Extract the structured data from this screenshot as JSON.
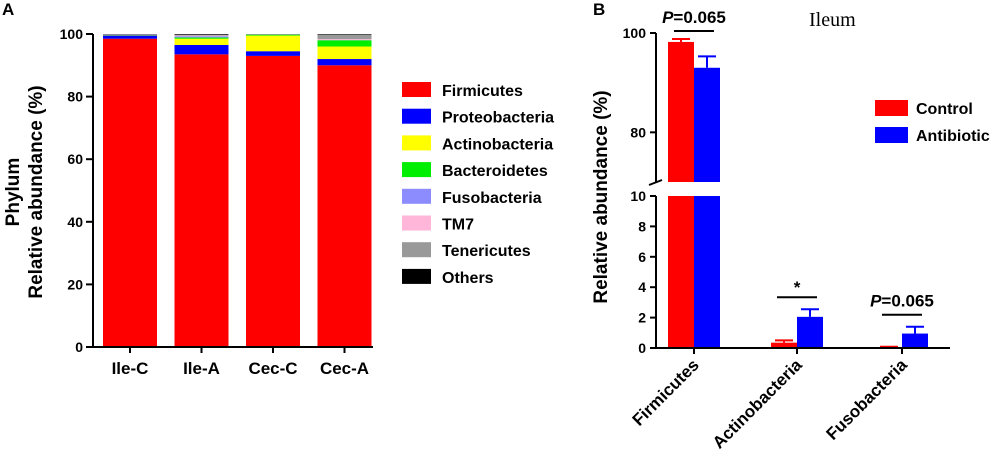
{
  "panel_labels": [
    "A",
    "B"
  ],
  "chart_data": [
    {
      "type": "bar",
      "stacked": true,
      "panel": "A",
      "title": "",
      "xlabel": "",
      "ylabel_line1": "Phylum",
      "ylabel_line2": "Relative abundance (%)",
      "ylim": [
        0,
        100
      ],
      "yticks": [
        0,
        20,
        40,
        60,
        80,
        100
      ],
      "categories": [
        "Ile-C",
        "Ile-A",
        "Cec-C",
        "Cec-A"
      ],
      "legend_position": "right",
      "series": [
        {
          "name": "Firmicutes",
          "color": "#ff0000",
          "values": [
            98.5,
            93.5,
            93.0,
            90.0
          ]
        },
        {
          "name": "Proteobacteria",
          "color": "#0000ff",
          "values": [
            1.0,
            3.0,
            1.5,
            2.0
          ]
        },
        {
          "name": "Actinobacteria",
          "color": "#ffff00",
          "values": [
            0.1,
            2.0,
            5.0,
            4.0
          ]
        },
        {
          "name": "Bacteroidetes",
          "color": "#00ee00",
          "values": [
            0.1,
            0.4,
            0.3,
            2.0
          ]
        },
        {
          "name": "Fusobacteria",
          "color": "#8c8cff",
          "values": [
            0.1,
            0.4,
            0.05,
            0.05
          ]
        },
        {
          "name": "TM7",
          "color": "#ffb6d9",
          "values": [
            0.05,
            0.2,
            0.05,
            0.3
          ]
        },
        {
          "name": "Tenericutes",
          "color": "#999999",
          "values": [
            0.05,
            0.3,
            0.05,
            1.5
          ]
        },
        {
          "name": "Others",
          "color": "#000000",
          "values": [
            0.1,
            0.2,
            0.05,
            0.15
          ]
        }
      ]
    },
    {
      "type": "bar",
      "panel": "B",
      "title": "Ileum",
      "xlabel": "",
      "ylabel": "Relative abundance (%)",
      "broken_axis": true,
      "ylim_lower": [
        0,
        10
      ],
      "yticks_lower": [
        0,
        2,
        4,
        6,
        8,
        10
      ],
      "ylim_upper": [
        70,
        100
      ],
      "yticks_upper": [
        80,
        100
      ],
      "categories": [
        "Firmicutes",
        "Actinobacteria",
        "Fusobacteria"
      ],
      "legend_position": "top-right",
      "series": [
        {
          "name": "Control",
          "color": "#ff0000",
          "values": [
            98.2,
            0.35,
            0.05
          ],
          "errors": [
            0.6,
            0.15,
            0.03
          ]
        },
        {
          "name": "Antibiotic",
          "color": "#0000ff",
          "values": [
            93.0,
            2.05,
            0.95
          ],
          "errors": [
            2.3,
            0.5,
            0.45
          ]
        }
      ],
      "annotations": [
        {
          "category": "Firmicutes",
          "text_italic": "P",
          "text": "=0.065"
        },
        {
          "category": "Actinobacteria",
          "text_italic": "",
          "text": "*"
        },
        {
          "category": "Fusobacteria",
          "text_italic": "P",
          "text": "=0.065"
        }
      ]
    }
  ]
}
